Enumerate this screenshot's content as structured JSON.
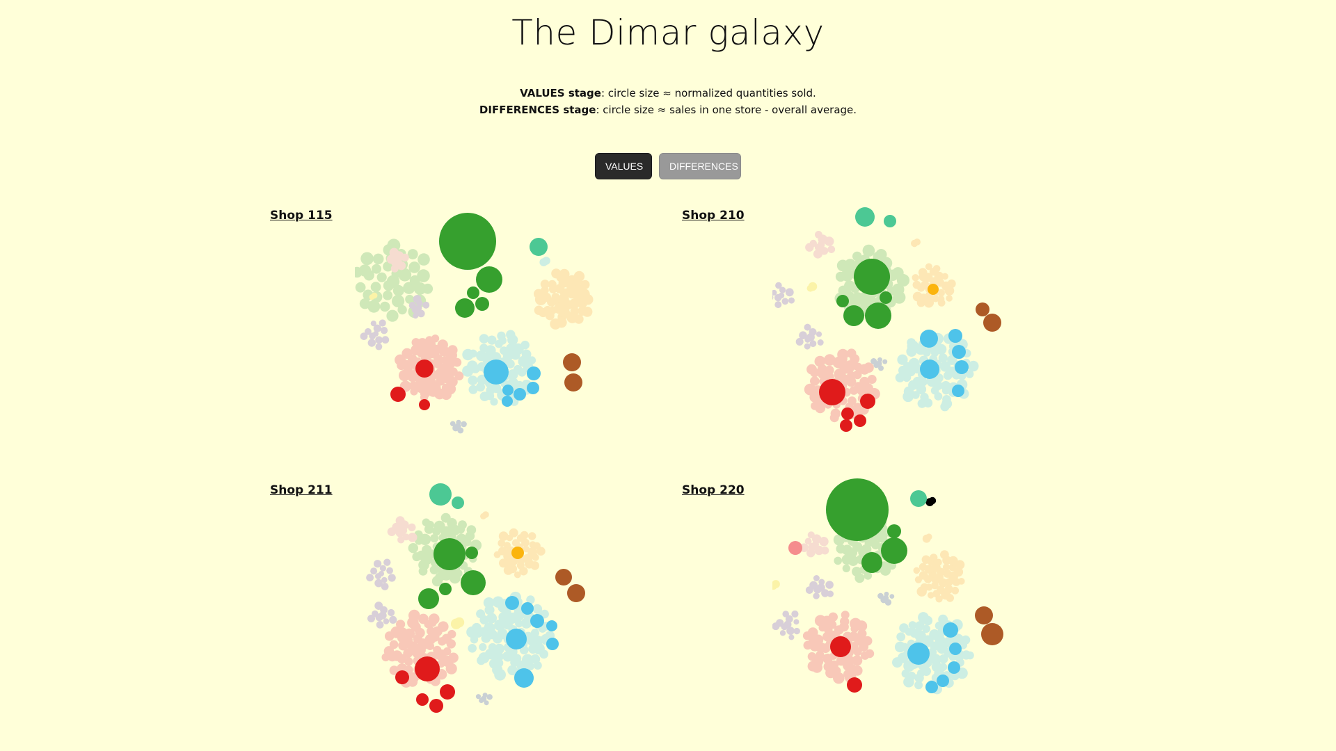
{
  "title": "The Dimar galaxy",
  "description": {
    "line1_bold": "VALUES stage",
    "line1_rest": ": circle size ≈ normalized quantities sold.",
    "line2_bold": "DIFFERENCES stage",
    "line2_rest": ": circle size ≈ sales in one store - overall average."
  },
  "buttons": {
    "values": "VALUES",
    "differences": "DIFFERENCES",
    "active": "values"
  },
  "colors": {
    "background": "#ffffd9",
    "green": "#36a02e",
    "blue": "#4ec3ea",
    "red": "#e01b1b",
    "brown": "#ad5a26",
    "teal": "#4cc894",
    "orange": "#fbb40e",
    "pink": "#f58d8d"
  },
  "shops": [
    {
      "label": "Shop 115"
    },
    {
      "label": "Shop 210"
    },
    {
      "label": "Shop 211"
    },
    {
      "label": "Shop 220"
    }
  ]
}
